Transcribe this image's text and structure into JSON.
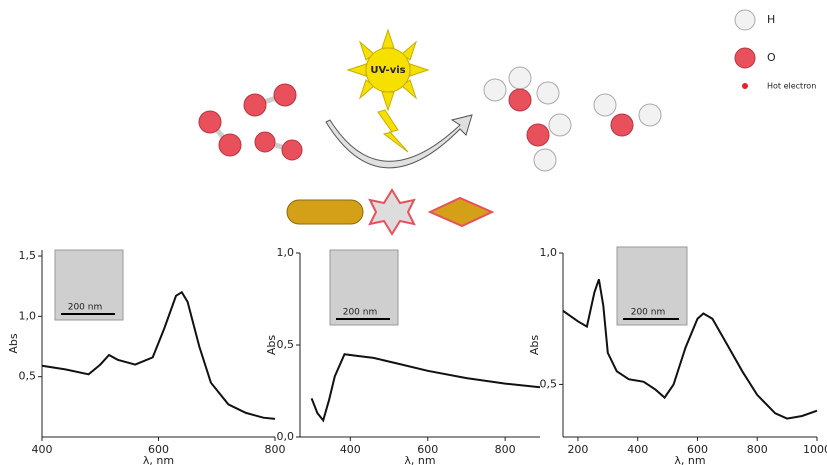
{
  "diagram": {
    "light_label": "UV-vis",
    "legend": [
      "H",
      "O",
      "Hot electron"
    ]
  },
  "chart_data": [
    {
      "type": "line",
      "x_label": "λ, nm",
      "y_label": "Abs",
      "inset_label": "200 nm",
      "xlim": [
        400,
        800
      ],
      "ylim": [
        0,
        1.55
      ],
      "xticks": [
        400,
        600,
        800
      ],
      "yticks": [
        {
          "value": 0.5,
          "label": "0,5"
        },
        {
          "value": 1.0,
          "label": "1,0"
        },
        {
          "value": 1.5,
          "label": "1,5"
        }
      ],
      "series": [
        {
          "color": "#111111",
          "x": [
            400,
            440,
            480,
            500,
            515,
            530,
            560,
            590,
            610,
            630,
            640,
            650,
            670,
            690,
            720,
            750,
            780,
            800
          ],
          "values": [
            0.59,
            0.56,
            0.52,
            0.6,
            0.68,
            0.64,
            0.6,
            0.66,
            0.9,
            1.17,
            1.2,
            1.12,
            0.75,
            0.45,
            0.27,
            0.2,
            0.16,
            0.15
          ]
        }
      ]
    },
    {
      "type": "line",
      "x_label": "λ, nm",
      "y_label": "Abs",
      "inset_label": "200 nm",
      "xlim": [
        270,
        890
      ],
      "ylim": [
        0,
        1.0
      ],
      "xticks": [
        400,
        600,
        800
      ],
      "yticks": [
        {
          "value": 0.0,
          "label": "0,0"
        },
        {
          "value": 0.5,
          "label": "0,5"
        },
        {
          "value": 1.0,
          "label": "1,0"
        }
      ],
      "series": [
        {
          "color": "#111111",
          "x": [
            300,
            315,
            330,
            345,
            360,
            385,
            420,
            460,
            520,
            600,
            700,
            800,
            890
          ],
          "values": [
            0.21,
            0.13,
            0.09,
            0.2,
            0.33,
            0.45,
            0.44,
            0.43,
            0.4,
            0.36,
            0.32,
            0.29,
            0.27
          ]
        }
      ]
    },
    {
      "type": "line",
      "x_label": "λ, nm",
      "y_label": "Abs",
      "inset_label": "200 nm",
      "xlim": [
        150,
        1000
      ],
      "ylim": [
        0.3,
        1.0
      ],
      "xticks": [
        200,
        400,
        600,
        800,
        1000
      ],
      "yticks": [
        {
          "value": 0.5,
          "label": "0,5"
        },
        {
          "value": 1.0,
          "label": "1,0"
        }
      ],
      "series": [
        {
          "color": "#111111",
          "x": [
            150,
            200,
            230,
            255,
            270,
            285,
            300,
            330,
            370,
            420,
            460,
            490,
            520,
            560,
            600,
            620,
            650,
            700,
            750,
            800,
            860,
            900,
            950,
            1000
          ],
          "values": [
            0.78,
            0.74,
            0.72,
            0.85,
            0.9,
            0.8,
            0.62,
            0.55,
            0.52,
            0.51,
            0.48,
            0.45,
            0.5,
            0.64,
            0.75,
            0.77,
            0.75,
            0.65,
            0.55,
            0.46,
            0.39,
            0.37,
            0.38,
            0.4
          ]
        }
      ]
    }
  ]
}
